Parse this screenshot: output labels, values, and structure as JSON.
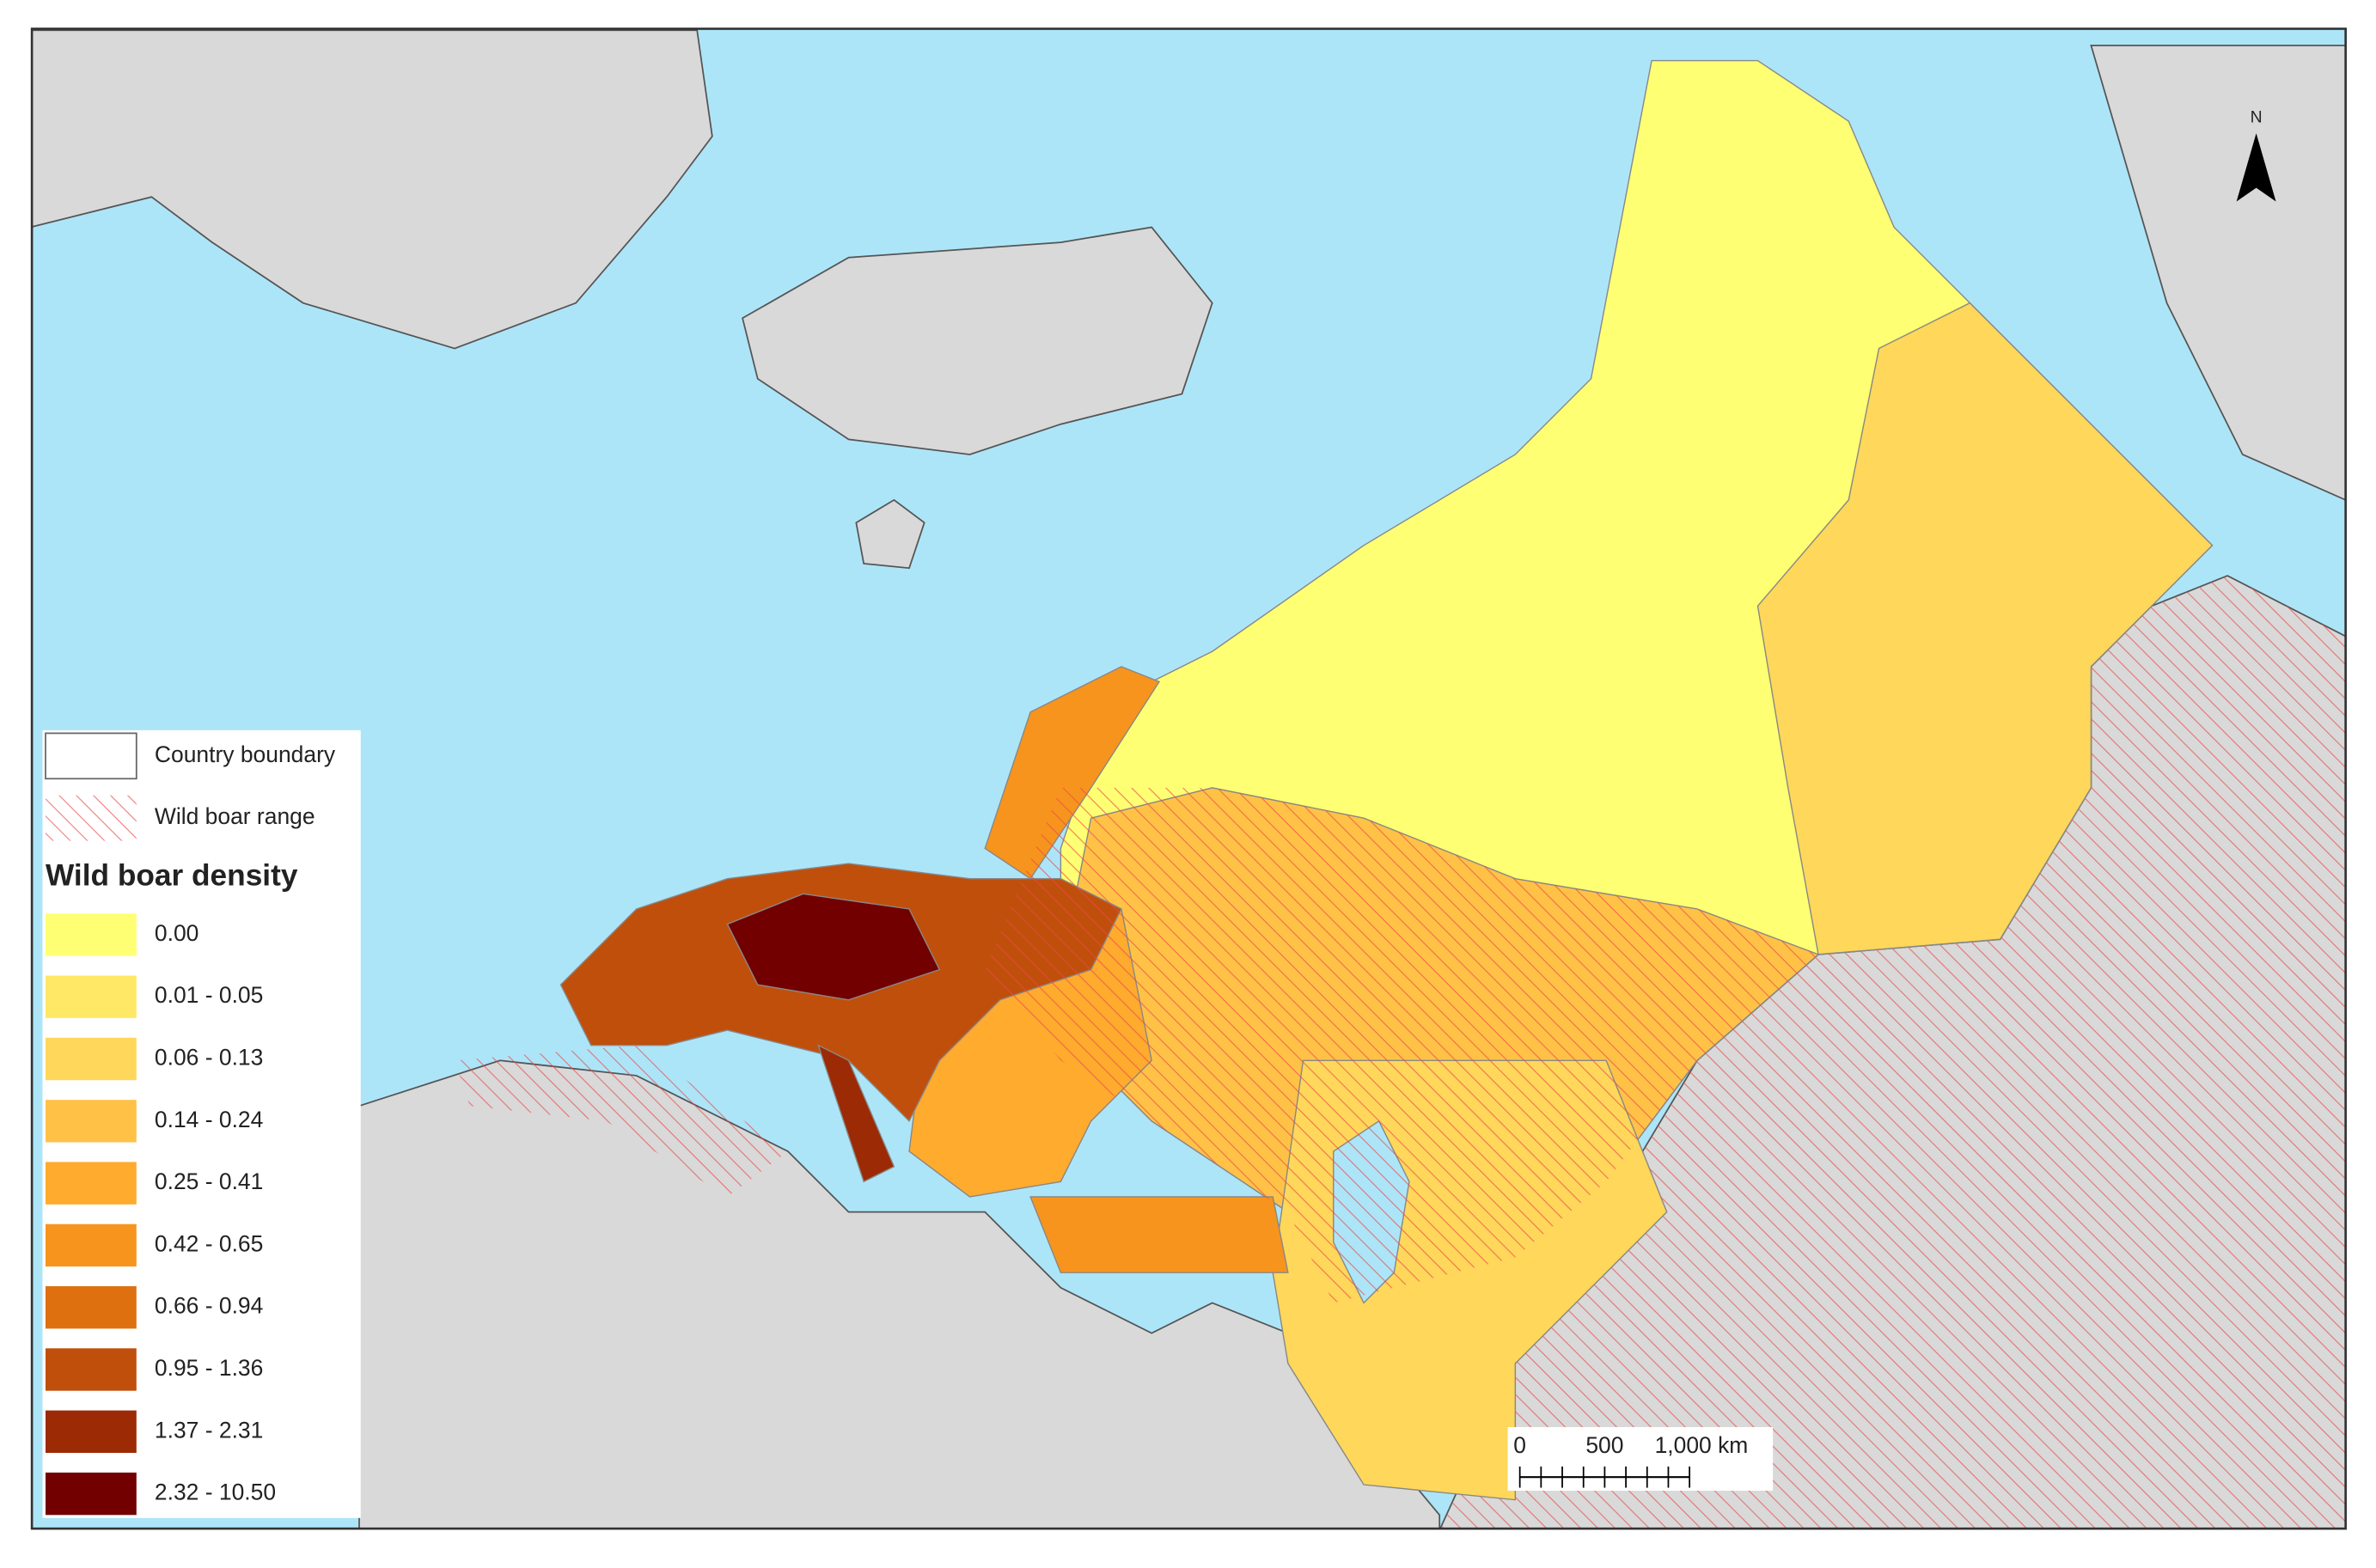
{
  "legend": {
    "country_boundary": "Country boundary",
    "range": "Wild boar range",
    "title": "Wild boar density",
    "classes": [
      {
        "label": "0.00",
        "color": "#ffff73"
      },
      {
        "label": "0.01 - 0.05",
        "color": "#ffe866"
      },
      {
        "label": "0.06 - 0.13",
        "color": "#ffd75a"
      },
      {
        "label": "0.14 - 0.24",
        "color": "#ffc247"
      },
      {
        "label": "0.25 - 0.41",
        "color": "#ffab2e"
      },
      {
        "label": "0.42 - 0.65",
        "color": "#f7941d"
      },
      {
        "label": "0.66 - 0.94",
        "color": "#de7010"
      },
      {
        "label": "0.95 - 1.36",
        "color": "#c04f0c"
      },
      {
        "label": "1.37 - 2.31",
        "color": "#9c2a05"
      },
      {
        "label": "2.32 - 10.50",
        "color": "#730000"
      }
    ]
  },
  "scale_bar": {
    "labels": [
      "0",
      "500",
      "1,000 km"
    ]
  },
  "north": "N"
}
